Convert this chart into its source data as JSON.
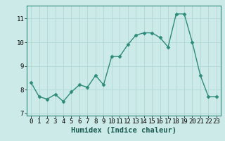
{
  "x": [
    0,
    1,
    2,
    3,
    4,
    5,
    6,
    7,
    8,
    9,
    10,
    11,
    12,
    13,
    14,
    15,
    16,
    17,
    18,
    19,
    20,
    21,
    22,
    23
  ],
  "y": [
    8.3,
    7.7,
    7.6,
    7.8,
    7.5,
    7.9,
    8.2,
    8.1,
    8.6,
    8.2,
    9.4,
    9.4,
    9.9,
    10.3,
    10.4,
    10.4,
    10.2,
    9.8,
    11.2,
    11.2,
    10.0,
    8.6,
    7.7,
    7.7
  ],
  "line_color": "#2e8b7a",
  "marker": "D",
  "marker_size": 2.5,
  "bg_color": "#cceae7",
  "grid_color": "#b0d8d4",
  "xlabel": "Humidex (Indice chaleur)",
  "xlim": [
    -0.5,
    23.5
  ],
  "ylim": [
    6.9,
    11.55
  ],
  "yticks": [
    7,
    8,
    9,
    10,
    11
  ],
  "xticks": [
    0,
    1,
    2,
    3,
    4,
    5,
    6,
    7,
    8,
    9,
    10,
    11,
    12,
    13,
    14,
    15,
    16,
    17,
    18,
    19,
    20,
    21,
    22,
    23
  ],
  "tick_fontsize": 6.5,
  "xlabel_fontsize": 7.5,
  "linewidth": 1.0
}
